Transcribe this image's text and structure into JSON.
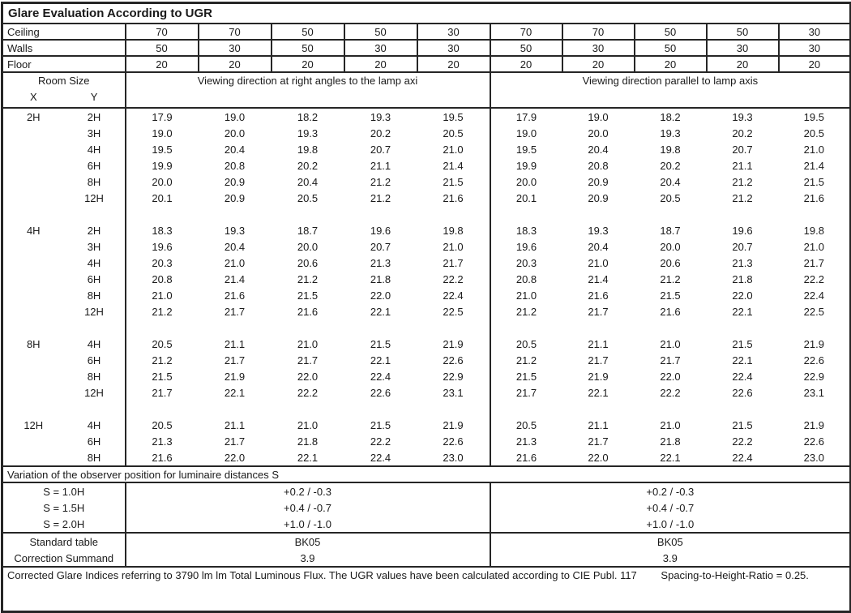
{
  "title": "Glare Evaluation According to UGR",
  "colors": {
    "text": "#1a1a1a",
    "border": "#262626",
    "background": "#ffffff"
  },
  "surface_rows": [
    {
      "label": "Ceiling",
      "values": [
        "70",
        "70",
        "50",
        "50",
        "30",
        "70",
        "70",
        "50",
        "50",
        "30"
      ]
    },
    {
      "label": "Walls",
      "values": [
        "50",
        "30",
        "50",
        "30",
        "30",
        "50",
        "30",
        "50",
        "30",
        "30"
      ]
    },
    {
      "label": "Floor",
      "values": [
        "20",
        "20",
        "20",
        "20",
        "20",
        "20",
        "20",
        "20",
        "20",
        "20"
      ]
    }
  ],
  "header": {
    "room_size": "Room Size",
    "x": "X",
    "y": "Y",
    "left_heading": "Viewing direction at right angles to the lamp axi",
    "right_heading": "Viewing direction parallel to lamp axis"
  },
  "body_blocks": [
    {
      "x": "2H",
      "rows": [
        {
          "y": "2H",
          "left": [
            "17.9",
            "19.0",
            "18.2",
            "19.3",
            "19.5"
          ],
          "right": [
            "17.9",
            "19.0",
            "18.2",
            "19.3",
            "19.5"
          ]
        },
        {
          "y": "3H",
          "left": [
            "19.0",
            "20.0",
            "19.3",
            "20.2",
            "20.5"
          ],
          "right": [
            "19.0",
            "20.0",
            "19.3",
            "20.2",
            "20.5"
          ]
        },
        {
          "y": "4H",
          "left": [
            "19.5",
            "20.4",
            "19.8",
            "20.7",
            "21.0"
          ],
          "right": [
            "19.5",
            "20.4",
            "19.8",
            "20.7",
            "21.0"
          ]
        },
        {
          "y": "6H",
          "left": [
            "19.9",
            "20.8",
            "20.2",
            "21.1",
            "21.4"
          ],
          "right": [
            "19.9",
            "20.8",
            "20.2",
            "21.1",
            "21.4"
          ]
        },
        {
          "y": "8H",
          "left": [
            "20.0",
            "20.9",
            "20.4",
            "21.2",
            "21.5"
          ],
          "right": [
            "20.0",
            "20.9",
            "20.4",
            "21.2",
            "21.5"
          ]
        },
        {
          "y": "12H",
          "left": [
            "20.1",
            "20.9",
            "20.5",
            "21.2",
            "21.6"
          ],
          "right": [
            "20.1",
            "20.9",
            "20.5",
            "21.2",
            "21.6"
          ]
        }
      ]
    },
    {
      "x": "4H",
      "rows": [
        {
          "y": "2H",
          "left": [
            "18.3",
            "19.3",
            "18.7",
            "19.6",
            "19.8"
          ],
          "right": [
            "18.3",
            "19.3",
            "18.7",
            "19.6",
            "19.8"
          ]
        },
        {
          "y": "3H",
          "left": [
            "19.6",
            "20.4",
            "20.0",
            "20.7",
            "21.0"
          ],
          "right": [
            "19.6",
            "20.4",
            "20.0",
            "20.7",
            "21.0"
          ]
        },
        {
          "y": "4H",
          "left": [
            "20.3",
            "21.0",
            "20.6",
            "21.3",
            "21.7"
          ],
          "right": [
            "20.3",
            "21.0",
            "20.6",
            "21.3",
            "21.7"
          ]
        },
        {
          "y": "6H",
          "left": [
            "20.8",
            "21.4",
            "21.2",
            "21.8",
            "22.2"
          ],
          "right": [
            "20.8",
            "21.4",
            "21.2",
            "21.8",
            "22.2"
          ]
        },
        {
          "y": "8H",
          "left": [
            "21.0",
            "21.6",
            "21.5",
            "22.0",
            "22.4"
          ],
          "right": [
            "21.0",
            "21.6",
            "21.5",
            "22.0",
            "22.4"
          ]
        },
        {
          "y": "12H",
          "left": [
            "21.2",
            "21.7",
            "21.6",
            "22.1",
            "22.5"
          ],
          "right": [
            "21.2",
            "21.7",
            "21.6",
            "22.1",
            "22.5"
          ]
        }
      ]
    },
    {
      "x": "8H",
      "rows": [
        {
          "y": "4H",
          "left": [
            "20.5",
            "21.1",
            "21.0",
            "21.5",
            "21.9"
          ],
          "right": [
            "20.5",
            "21.1",
            "21.0",
            "21.5",
            "21.9"
          ]
        },
        {
          "y": "6H",
          "left": [
            "21.2",
            "21.7",
            "21.7",
            "22.1",
            "22.6"
          ],
          "right": [
            "21.2",
            "21.7",
            "21.7",
            "22.1",
            "22.6"
          ]
        },
        {
          "y": "8H",
          "left": [
            "21.5",
            "21.9",
            "22.0",
            "22.4",
            "22.9"
          ],
          "right": [
            "21.5",
            "21.9",
            "22.0",
            "22.4",
            "22.9"
          ]
        },
        {
          "y": "12H",
          "left": [
            "21.7",
            "22.1",
            "22.2",
            "22.6",
            "23.1"
          ],
          "right": [
            "21.7",
            "22.1",
            "22.2",
            "22.6",
            "23.1"
          ]
        }
      ]
    },
    {
      "x": "12H",
      "rows": [
        {
          "y": "4H",
          "left": [
            "20.5",
            "21.1",
            "21.0",
            "21.5",
            "21.9"
          ],
          "right": [
            "20.5",
            "21.1",
            "21.0",
            "21.5",
            "21.9"
          ]
        },
        {
          "y": "6H",
          "left": [
            "21.3",
            "21.7",
            "21.8",
            "22.2",
            "22.6"
          ],
          "right": [
            "21.3",
            "21.7",
            "21.8",
            "22.2",
            "22.6"
          ]
        },
        {
          "y": "8H",
          "left": [
            "21.6",
            "22.0",
            "22.1",
            "22.4",
            "23.0"
          ],
          "right": [
            "21.6",
            "22.0",
            "22.1",
            "22.4",
            "23.0"
          ]
        }
      ]
    }
  ],
  "variation": {
    "heading": "Variation of the observer position for luminaire distances S",
    "rows": [
      {
        "label": "S = 1.0H",
        "left": "+0.2 / -0.3",
        "right": "+0.2 / -0.3"
      },
      {
        "label": "S = 1.5H",
        "left": "+0.4 / -0.7",
        "right": "+0.4 / -0.7"
      },
      {
        "label": "S = 2.0H",
        "left": "+1.0 / -1.0",
        "right": "+1.0 / -1.0"
      }
    ]
  },
  "summary_rows": [
    {
      "label": "Standard table",
      "left": "BK05",
      "right": "BK05"
    },
    {
      "label": "Correction Summand",
      "left": "3.9",
      "right": "3.9"
    }
  ],
  "footer": {
    "text": "Corrected Glare Indices referring to 3790 lm lm Total Luminous Flux. The UGR values have been calculated according to CIE Publ. 117",
    "ratio": "Spacing-to-Height-Ratio = 0.25."
  }
}
